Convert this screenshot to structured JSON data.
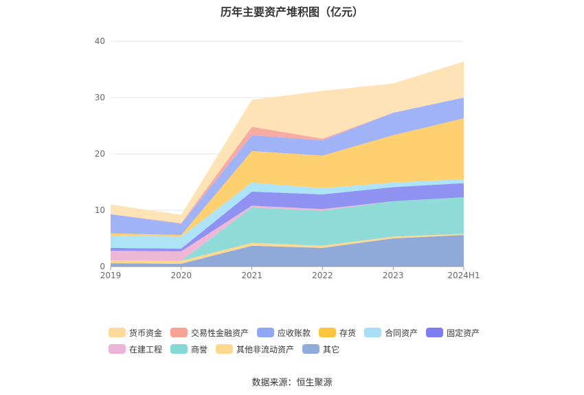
{
  "title": "历年主要资产堆积图（亿元）",
  "source": "数据来源：恒生聚源",
  "chart_data": {
    "type": "area",
    "stacked": true,
    "categories": [
      "2019",
      "2020",
      "2021",
      "2022",
      "2023",
      "2024H1"
    ],
    "ylim": [
      0,
      40
    ],
    "yticks": [
      0,
      10,
      20,
      30,
      40
    ],
    "grid": true,
    "legend_position": "bottom",
    "series": [
      {
        "name": "其它",
        "color": "#8fa9d8",
        "values": [
          0.6,
          0.5,
          3.7,
          3.3,
          5.0,
          5.6
        ]
      },
      {
        "name": "其他非流动资产",
        "color": "#ffd88f",
        "values": [
          0.5,
          0.5,
          0.5,
          0.4,
          0.3,
          0.2
        ]
      },
      {
        "name": "商誉",
        "color": "#8fdbd8",
        "values": [
          0.0,
          0.0,
          6.3,
          6.2,
          6.3,
          6.5
        ]
      },
      {
        "name": "在建工程",
        "color": "#f0b6d6",
        "values": [
          1.7,
          1.7,
          0.3,
          0.3,
          0.0,
          0.0
        ]
      },
      {
        "name": "固定资产",
        "color": "#8f92f0",
        "values": [
          0.5,
          0.5,
          2.5,
          2.6,
          2.5,
          2.5
        ]
      },
      {
        "name": "合同资产",
        "color": "#ade3f7",
        "values": [
          2.2,
          2.1,
          1.6,
          1.1,
          0.8,
          0.7
        ]
      },
      {
        "name": "存货",
        "color": "#ffd070",
        "values": [
          0.4,
          0.3,
          5.6,
          5.8,
          8.4,
          10.8
        ]
      },
      {
        "name": "应收账款",
        "color": "#9fb3f6",
        "values": [
          3.4,
          2.0,
          2.8,
          2.7,
          4.0,
          3.7
        ]
      },
      {
        "name": "交易性金融资产",
        "color": "#f8aba3",
        "values": [
          0.0,
          0.1,
          1.5,
          0.3,
          0.0,
          0.0
        ]
      },
      {
        "name": "货币资金",
        "color": "#fde3b6",
        "values": [
          1.7,
          1.5,
          4.8,
          8.5,
          5.2,
          6.4
        ]
      }
    ],
    "legend": [
      {
        "name": "货币资金",
        "color": "#fcd99c"
      },
      {
        "name": "交易性金融资产",
        "color": "#f8a296"
      },
      {
        "name": "应收账款",
        "color": "#8fa8f6"
      },
      {
        "name": "存货",
        "color": "#ffc43d"
      },
      {
        "name": "合同资产",
        "color": "#a9def7"
      },
      {
        "name": "固定资产",
        "color": "#7b7df0"
      },
      {
        "name": "在建工程",
        "color": "#ebb5d9"
      },
      {
        "name": "商誉",
        "color": "#84d8d6"
      },
      {
        "name": "其他非流动资产",
        "color": "#ffd88f"
      },
      {
        "name": "其它",
        "color": "#8facdb"
      }
    ]
  }
}
